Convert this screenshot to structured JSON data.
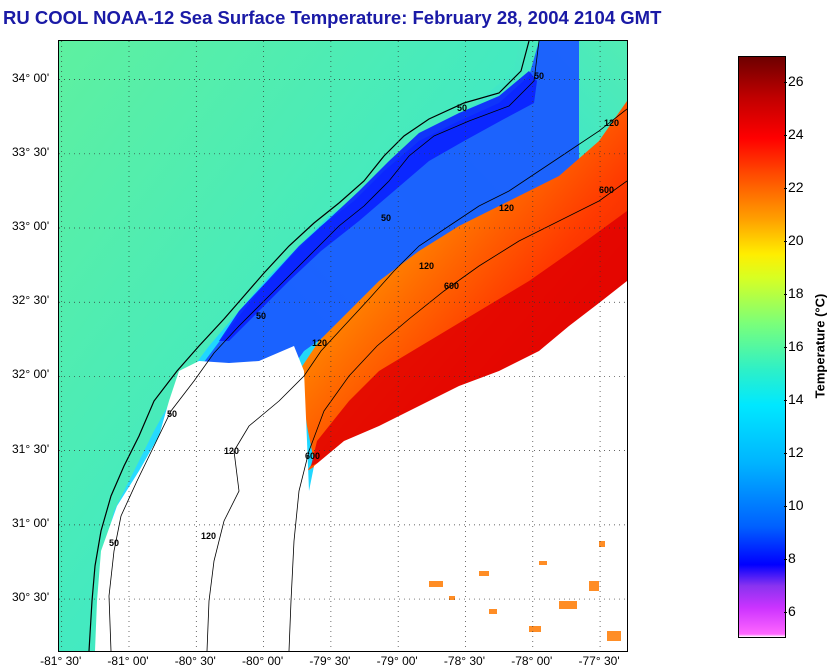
{
  "title": "RU COOL  NOAA-12  Sea Surface Temperature:  February 28, 2004 2104 GMT",
  "map": {
    "lat_labels": [
      {
        "text": "34° 00'",
        "lat": 34.0
      },
      {
        "text": "33° 30'",
        "lat": 33.5
      },
      {
        "text": "33° 00'",
        "lat": 33.0
      },
      {
        "text": "32° 30'",
        "lat": 32.5
      },
      {
        "text": "32° 00'",
        "lat": 32.0
      },
      {
        "text": "31° 30'",
        "lat": 31.5
      },
      {
        "text": "31° 00'",
        "lat": 31.0
      },
      {
        "text": "30° 30'",
        "lat": 30.5
      }
    ],
    "lon_labels": [
      {
        "text": "-81° 30'",
        "lon": -81.5
      },
      {
        "text": "-81° 00'",
        "lon": -81.0
      },
      {
        "text": "-80° 30'",
        "lon": -80.5
      },
      {
        "text": "-80° 00'",
        "lon": -80.0
      },
      {
        "text": "-79° 30'",
        "lon": -79.5
      },
      {
        "text": "-79° 00'",
        "lon": -79.0
      },
      {
        "text": "-78° 30'",
        "lon": -78.5
      },
      {
        "text": "-78° 00'",
        "lon": -78.0
      },
      {
        "text": "-77° 30'",
        "lon": -77.5
      }
    ],
    "lat_range": [
      30.15,
      34.26
    ],
    "lon_range": [
      -81.52,
      -77.3
    ],
    "isobath_labels": [
      "50",
      "50",
      "50",
      "50",
      "50",
      "50",
      "120",
      "120",
      "120",
      "120",
      "120",
      "120",
      "600",
      "600",
      "600"
    ],
    "grid": "dotted",
    "data_gap": "cloud / no data shown white"
  },
  "colorbar": {
    "label": "Temperature (°C)",
    "ticks": [
      "6",
      "8",
      "10",
      "12",
      "14",
      "16",
      "18",
      "20",
      "22",
      "24",
      "26"
    ],
    "range": [
      5,
      27
    ],
    "colors": {
      "cold": "#ff66ff",
      "cool": "#0000ff",
      "mid": "#00e8ff",
      "warm": "#ffee00",
      "hot": "#ff0000",
      "hottest": "#6e0000"
    }
  }
}
